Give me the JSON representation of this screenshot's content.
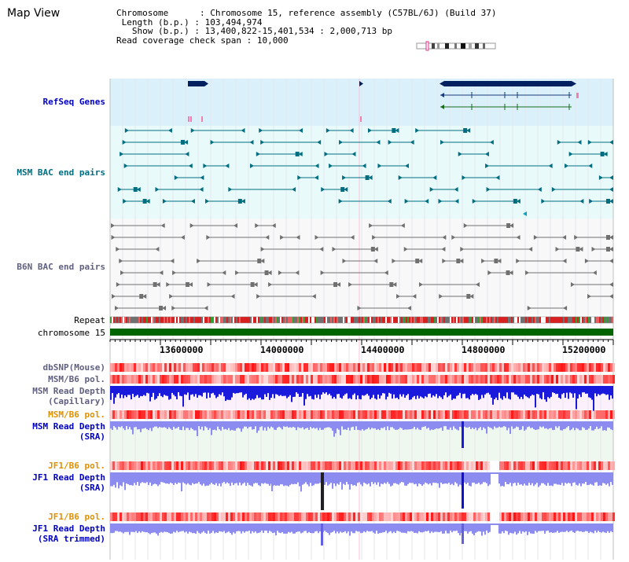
{
  "page": {
    "title": "Map View"
  },
  "info": {
    "chromosome_key": "Chromosome",
    "chromosome_value": "Chromosome 15, reference assembly (C57BL/6J) (Build 37)",
    "length_key": "Length (b.p.)",
    "length_value": "103,494,974",
    "show_key": "Show (b.p.)",
    "show_value": "13,400,822-15,401,534 : 2,000,713 bp",
    "coverage_key": "Read coverage check span",
    "coverage_value": "10,000"
  },
  "tracks": {
    "refseq": "RefSeq Genes",
    "msm_bac": "MSM BAC end pairs",
    "b6n_bac": "B6N BAC end pairs",
    "repeat": "Repeat",
    "chrom": "chromosome 15",
    "dbsnp": "dbSNP(Mouse)",
    "msm_b6_pol": "MSM/B6 pol.",
    "msm_depth_cap_1": "MSM Read Depth",
    "msm_depth_cap_2": "(Capillary)",
    "msm_b6_pol2": "MSM/B6 pol.",
    "msm_depth_sra_1": "MSM Read Depth",
    "msm_depth_sra_2": "(SRA)",
    "jf1_b6_pol": "JF1/B6 pol.",
    "jf1_depth_1": "JF1 Read Depth",
    "jf1_depth_2": "(SRA)",
    "jf1_b6_pol2": "JF1/B6 pol.",
    "jf1_trim_1": "JF1 Read Depth",
    "jf1_trim_2": "(SRA trimmed)"
  },
  "axis": {
    "ticks": [
      "13600000",
      "14000000",
      "14400000",
      "14800000",
      "15200000"
    ]
  },
  "colors": {
    "refseq_bg": "#daf0fa",
    "msm_bg": "#e8fafa",
    "b6n_bg": "#f8f8f8",
    "gene": "#002060",
    "msm_feature": "#006e80",
    "b6n_feature": "#707070",
    "label_blue": "#0000c0",
    "label_teal": "#006e80",
    "label_gray": "#606080",
    "label_orange": "#e09000",
    "chrom_bar": "#006400",
    "depth_dark": "#1a1adc",
    "depth_light": "#8c8cf0"
  }
}
